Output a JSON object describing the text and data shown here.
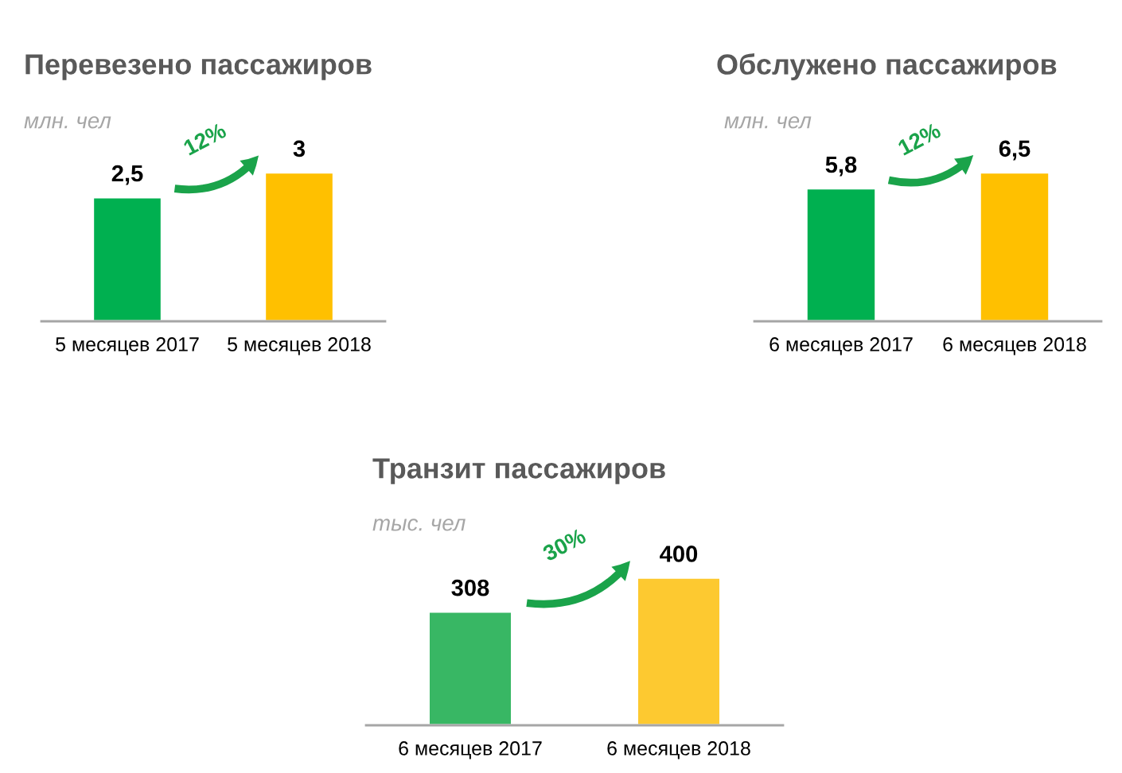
{
  "chart_data": [
    {
      "type": "bar",
      "title": "Перевезено пассажиров",
      "subtitle": "млн. чел",
      "categories": [
        "5 месяцев 2017",
        "5 месяцев 2018"
      ],
      "values": [
        2.5,
        3
      ],
      "colors": [
        "#00b050",
        "#ffc000"
      ],
      "value_labels": [
        "2,5",
        "3"
      ],
      "annotations": [
        "12%"
      ]
    },
    {
      "type": "bar",
      "title": "Обслужено пассажиров",
      "subtitle": "млн. чел",
      "categories": [
        "6 месяцев 2017",
        "6 месяцев 2018"
      ],
      "values": [
        5.8,
        6.5
      ],
      "colors": [
        "#00b050",
        "#ffc000"
      ],
      "value_labels": [
        "5,8",
        "6,5"
      ],
      "annotations": [
        "12%"
      ]
    },
    {
      "type": "bar",
      "title": "Транзит пассажиров",
      "subtitle": "тыс. чел",
      "categories": [
        "6 месяцев 2017",
        "6 месяцев 2018"
      ],
      "values": [
        308,
        400
      ],
      "colors": [
        "#38b764",
        "#fdc930"
      ],
      "value_labels": [
        "308",
        "400"
      ],
      "annotations": [
        "30%"
      ]
    }
  ]
}
